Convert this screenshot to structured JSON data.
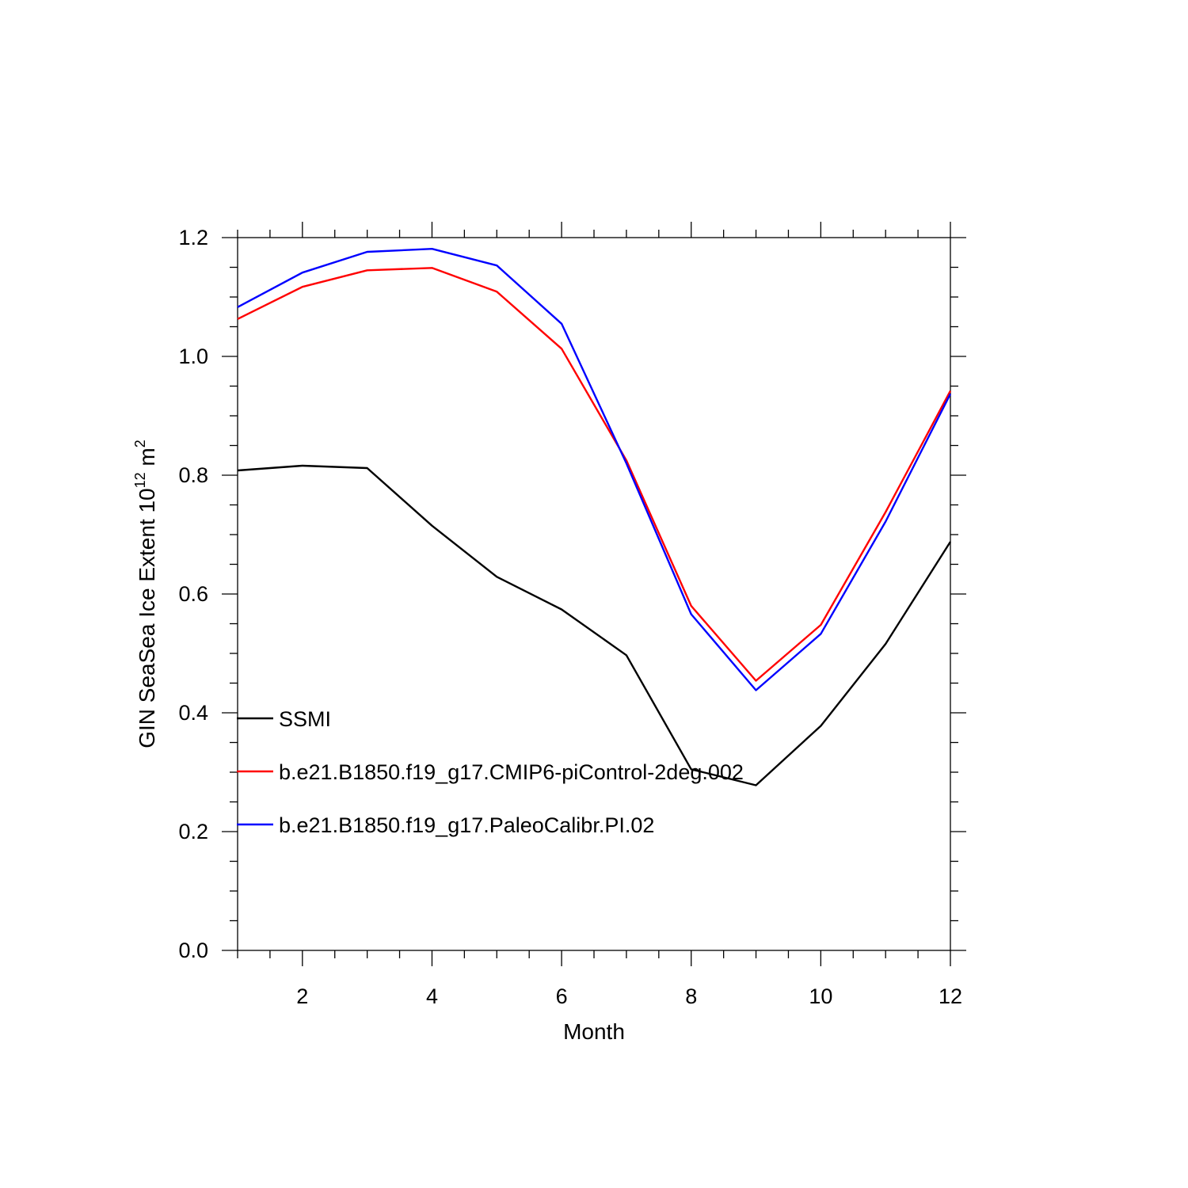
{
  "chart_data": {
    "type": "line",
    "xlabel": "Month",
    "ylabel": {
      "base": "GIN SeaSea Ice Extent 10",
      "exp1": "12",
      "unit": " m",
      "exp2": "2"
    },
    "xlim": [
      1,
      12
    ],
    "ylim": [
      0.0,
      1.2
    ],
    "x_ticks": [
      2,
      4,
      6,
      8,
      10,
      12
    ],
    "y_ticks": [
      "0.0",
      "0.2",
      "0.4",
      "0.6",
      "0.8",
      "1.0",
      "1.2"
    ],
    "legend_placement": "lower-left",
    "x": [
      1,
      2,
      3,
      4,
      5,
      6,
      7,
      8,
      9,
      10,
      11,
      12
    ],
    "series": [
      {
        "name": "SSMI",
        "color": "#000000",
        "values": [
          0.808,
          0.816,
          0.812,
          0.715,
          0.629,
          0.574,
          0.497,
          0.305,
          0.278,
          0.378,
          0.516,
          0.688
        ]
      },
      {
        "name": "b.e21.B1850.f19_g17.CMIP6-piControl-2deg.002",
        "color": "#ff0000",
        "values": [
          1.063,
          1.117,
          1.145,
          1.149,
          1.109,
          1.013,
          0.825,
          0.58,
          0.454,
          0.548,
          0.738,
          0.942
        ]
      },
      {
        "name": "b.e21.B1850.f19_g17.PaleoCalibr.PI.02",
        "color": "#0000ff",
        "values": [
          1.083,
          1.141,
          1.176,
          1.181,
          1.153,
          1.055,
          0.82,
          0.566,
          0.438,
          0.533,
          0.722,
          0.937
        ]
      }
    ]
  }
}
